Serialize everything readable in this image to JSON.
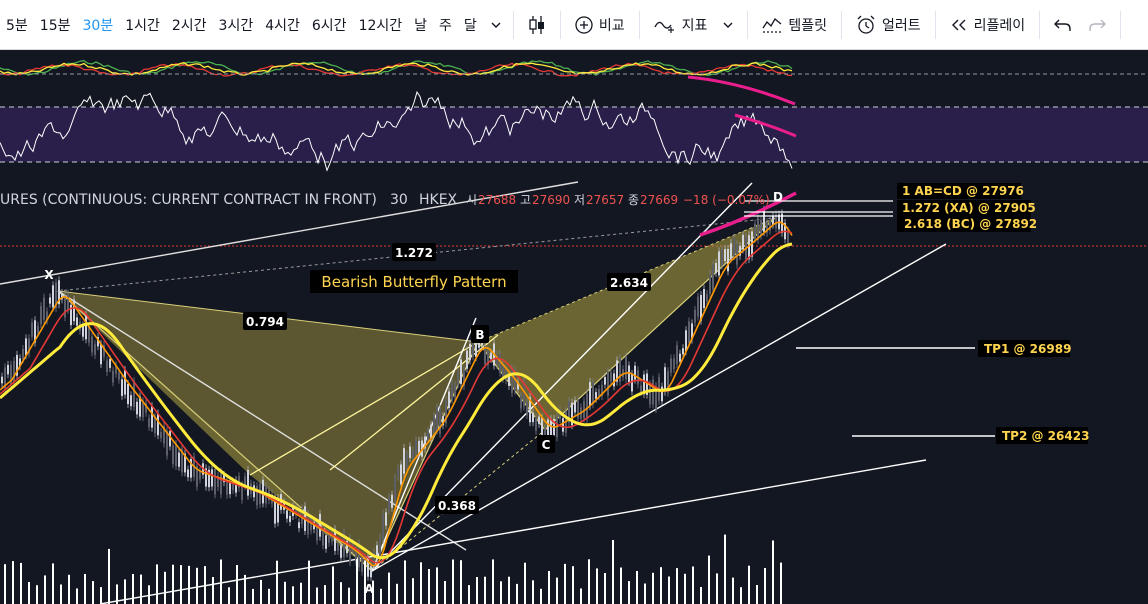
{
  "toolbar": {
    "timeframes": [
      "5분",
      "15분",
      "30분",
      "1시간",
      "2시간",
      "3시간",
      "4시간",
      "6시간",
      "12시간",
      "날",
      "주",
      "달"
    ],
    "active_timeframe": "30분",
    "compare_label": "비교",
    "indicators_label": "지표",
    "templates_label": "템플릿",
    "alert_label": "얼러트",
    "replay_label": "리플레이"
  },
  "legend": {
    "symbol": "URES (CONTINUOUS: CURRENT CONTRACT IN FRONT)",
    "interval": "30",
    "exchange": "HKEX",
    "o_label": "시",
    "o_value": "27688",
    "h_label": "고",
    "h_value": "27690",
    "l_label": "저",
    "l_value": "27657",
    "c_label": "종",
    "c_value": "27669",
    "change": "−18 (−0.07%)"
  },
  "annotations": {
    "pattern_title": "Bearish Butterfly Pattern",
    "point_x": "X",
    "point_a": "A",
    "point_b": "B",
    "point_c": "C",
    "point_d": "D",
    "ratio_xb": "0.794",
    "ratio_ac": "0.368",
    "ratio_bd": "2.634",
    "ratio_xd": "1.272",
    "level_abcd": "1 AB=CD @ 27976",
    "level_xa": "1.272 (XA) @ 27905",
    "level_bc": "2.618 (BC) @ 27892",
    "tp1": "TP1 @ 26989",
    "tp2": "TP2 @ 26423"
  },
  "colors": {
    "background": "#131722",
    "pattern_fill": "#b5a642",
    "price_yellow": "#ffeb3b",
    "ma_red": "#e53935",
    "ma_orange": "#ff9800",
    "accent_pink": "#e91e8c",
    "rsi_band": "#2a1f4a",
    "active_tab": "#2196f3"
  }
}
